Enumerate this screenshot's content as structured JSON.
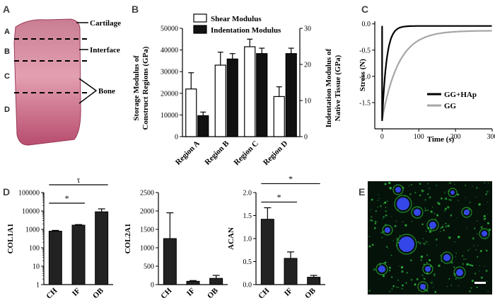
{
  "panels": {
    "A": {
      "label": "A",
      "annotations": [
        "Cartilage",
        "Interface",
        "Bone"
      ],
      "region_letters": [
        "A",
        "B",
        "C",
        "D"
      ],
      "colors": {
        "tissue_top": "#c97d93",
        "tissue_mid": "#e3a0b1",
        "tissue_bottom": "#b84d6f"
      }
    },
    "E": {
      "label": "E",
      "colors": {
        "background": "#05120a",
        "stain_green": "#2fbf3f",
        "stain_blue": "#3a4dff"
      }
    }
  },
  "chart_data": [
    {
      "panel": "B",
      "type": "bar",
      "categories": [
        "Region A",
        "Region B",
        "Region C",
        "Region D"
      ],
      "series": [
        {
          "name": "Shear Modulus",
          "values": [
            22000,
            33000,
            41500,
            18500
          ],
          "errors": [
            7500,
            6000,
            3500,
            4500
          ],
          "color": "#ffffff",
          "axis": "left"
        },
        {
          "name": "Indentation Modulus",
          "values": [
            5.8,
            21.5,
            23.0,
            23.0
          ],
          "errors": [
            1.0,
            1.5,
            1.5,
            1.5
          ],
          "color": "#111111",
          "axis": "right"
        }
      ],
      "ylabel": "Storage Modulus of Construct Regions (GPa)",
      "y2label": "Indentation Modulus of Native Tissue (GPa)",
      "ylim": [
        0,
        50000
      ],
      "yticks": [
        0,
        10000,
        20000,
        30000,
        40000,
        50000
      ],
      "y2lim": [
        0,
        30
      ],
      "y2ticks": [
        0,
        10,
        20,
        30
      ],
      "legend": "top-left"
    },
    {
      "panel": "C",
      "type": "line",
      "xlabel": "Time (s)",
      "ylabel": "Stress (N)",
      "xlim": [
        -20,
        300
      ],
      "ylim": [
        -2.0,
        0.05
      ],
      "xticks": [
        0,
        100,
        200,
        300
      ],
      "yticks": [
        0.0,
        -0.5,
        -1.0,
        -1.5
      ],
      "ytick_labels": [
        "0.0",
        "-0.5",
        "-1.0",
        "-1.5"
      ],
      "series": [
        {
          "name": "GG+HAp",
          "color": "#000000",
          "min": -1.85,
          "plateau": -0.04,
          "tau": 12
        },
        {
          "name": "GG",
          "color": "#a6a6a6",
          "min": -1.82,
          "plateau": -0.13,
          "tau": 45
        }
      ],
      "legend": "bottom-right"
    },
    {
      "panel": "D",
      "type": "bar",
      "ylabel": "COL1A1",
      "scale": "log",
      "categories": [
        "CH",
        "IF",
        "OB"
      ],
      "values": [
        800,
        1700,
        9000
      ],
      "errors": [
        80,
        120,
        4000
      ],
      "ylim": [
        1,
        100000
      ],
      "yticks": [
        1,
        10,
        100,
        1000,
        10000,
        100000
      ],
      "significance": [
        {
          "from": 0,
          "to": 1,
          "symbol": "*"
        },
        {
          "from": 0,
          "to": 2,
          "symbol": "τ"
        }
      ]
    },
    {
      "type": "bar",
      "ylabel": "COL2A1",
      "categories": [
        "CH",
        "IF",
        "OB"
      ],
      "values": [
        1250,
        90,
        170
      ],
      "errors": [
        700,
        20,
        80
      ],
      "ylim": [
        0,
        2500
      ],
      "yticks": [
        0,
        500,
        1000,
        1500,
        2000,
        2500
      ],
      "significance": []
    },
    {
      "type": "bar",
      "ylabel": "ACAN",
      "categories": [
        "CH",
        "IF",
        "OB"
      ],
      "values": [
        1.42,
        0.57,
        0.16
      ],
      "errors": [
        0.25,
        0.14,
        0.04
      ],
      "ylim": [
        0,
        2.0
      ],
      "yticks": [
        0.0,
        0.5,
        1.0,
        1.5,
        2.0
      ],
      "ytick_labels": [
        "0.0",
        "0.5",
        "1.0",
        "1.5",
        "2.0"
      ],
      "significance": [
        {
          "from": 0,
          "to": 1,
          "symbol": "*"
        },
        {
          "from": 0,
          "to": 2,
          "symbol": "*"
        }
      ]
    }
  ]
}
